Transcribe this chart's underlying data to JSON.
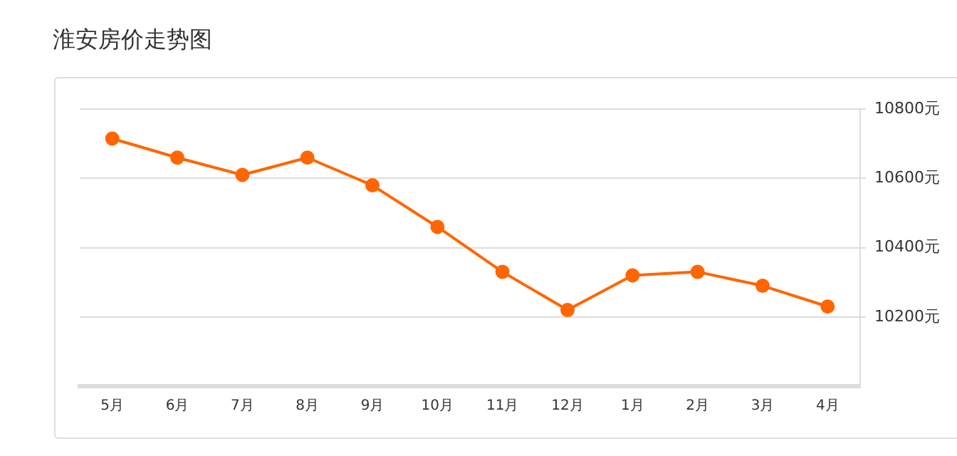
{
  "chart_data": {
    "type": "line",
    "title": "淮安房价走势图",
    "categories": [
      "5月",
      "6月",
      "7月",
      "8月",
      "9月",
      "10月",
      "11月",
      "12月",
      "1月",
      "2月",
      "3月",
      "4月"
    ],
    "series": [
      {
        "color": "#ff6600",
        "values": [
          10715,
          10660,
          10610,
          10660,
          10580,
          10460,
          10330,
          10220,
          10320,
          10330,
          10290,
          10230
        ]
      }
    ],
    "ylim": [
      10000,
      10800
    ],
    "yticks": [
      {
        "value": 10200,
        "label": "10200元"
      },
      {
        "value": 10400,
        "label": "10400元"
      },
      {
        "value": 10600,
        "label": "10600元"
      },
      {
        "value": 10800,
        "label": "10800元"
      }
    ],
    "grid": "y",
    "marker": "circle",
    "line_style": "solid",
    "legend": false
  }
}
